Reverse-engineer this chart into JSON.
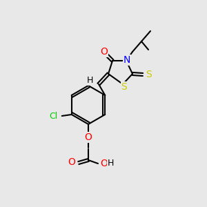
{
  "bg_color": "#e8e8e8",
  "bond_color": "#000000",
  "atom_colors": {
    "O": "#ff0000",
    "N": "#0000ff",
    "S": "#cccc00",
    "Cl": "#00cc00",
    "H": "#000000",
    "C": "#000000"
  },
  "font_size": 9,
  "bond_width": 1.5
}
